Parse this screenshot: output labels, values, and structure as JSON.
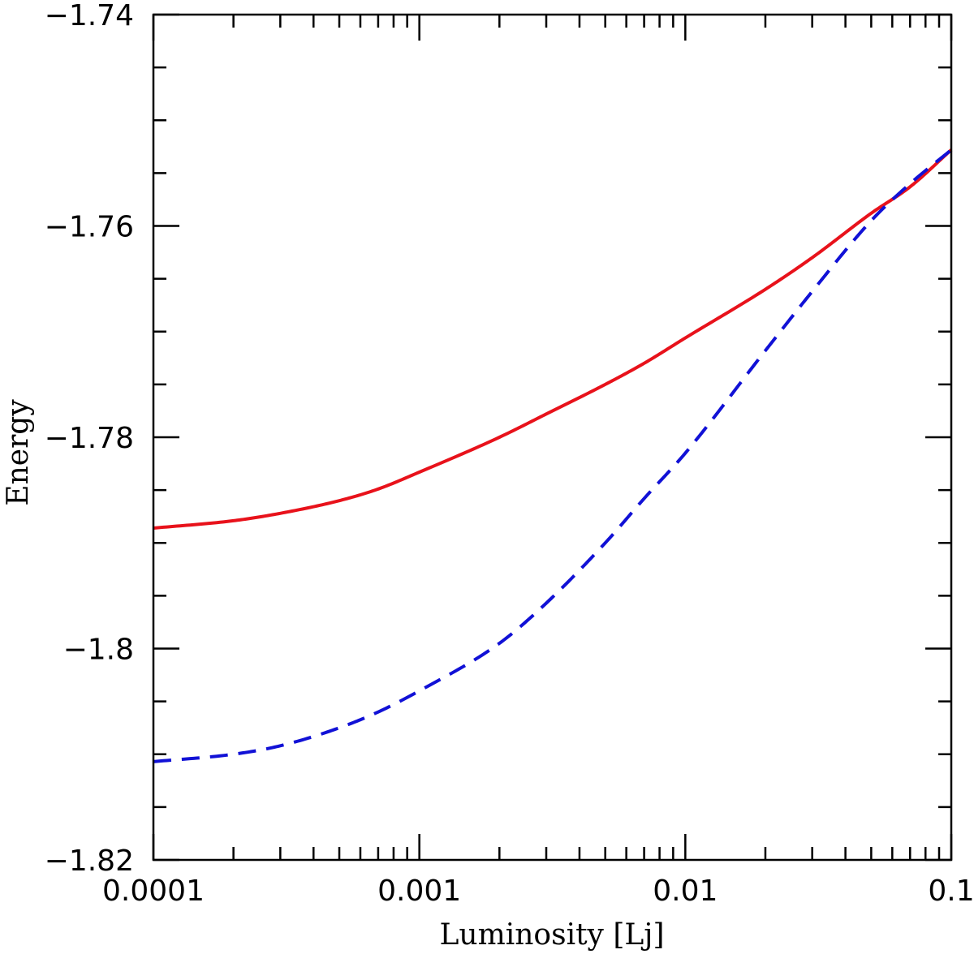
{
  "chart_data": {
    "type": "line",
    "title": "",
    "xlabel": "Luminosity [Lj]",
    "ylabel": "Energy",
    "xscale": "log",
    "xlim": [
      0.0001,
      0.1
    ],
    "ylim": [
      -1.82,
      -1.74
    ],
    "xticks": [
      {
        "value": 0.0001,
        "label": "0.0001"
      },
      {
        "value": 0.001,
        "label": "0.001"
      },
      {
        "value": 0.01,
        "label": "0.01"
      },
      {
        "value": 0.1,
        "label": "0.1"
      }
    ],
    "yticks": [
      {
        "value": -1.74,
        "label": "−1.74"
      },
      {
        "value": -1.76,
        "label": "−1.76"
      },
      {
        "value": -1.78,
        "label": "−1.78"
      },
      {
        "value": -1.8,
        "label": "−1.8"
      },
      {
        "value": -1.82,
        "label": "−1.82"
      }
    ],
    "yminor_step": 0.005,
    "grid": false,
    "series": [
      {
        "name": "solid",
        "style": "solid",
        "color": "#e8121b",
        "x": [
          0.0001,
          0.0002,
          0.0003,
          0.0005,
          0.0007,
          0.001,
          0.002,
          0.003,
          0.005,
          0.007,
          0.01,
          0.02,
          0.03,
          0.05,
          0.07,
          0.1
        ],
        "y": [
          -1.7886,
          -1.7879,
          -1.7872,
          -1.786,
          -1.7849,
          -1.7833,
          -1.78,
          -1.7778,
          -1.775,
          -1.773,
          -1.7706,
          -1.766,
          -1.763,
          -1.7588,
          -1.7563,
          -1.7528
        ]
      },
      {
        "name": "dashed",
        "style": "dashed",
        "color": "#1111d6",
        "x": [
          0.0001,
          0.0002,
          0.0003,
          0.0005,
          0.0007,
          0.001,
          0.002,
          0.003,
          0.005,
          0.007,
          0.01,
          0.02,
          0.03,
          0.05,
          0.07,
          0.1
        ],
        "y": [
          -1.8107,
          -1.81,
          -1.8092,
          -1.8075,
          -1.806,
          -1.804,
          -1.7995,
          -1.7957,
          -1.79,
          -1.7858,
          -1.7815,
          -1.7718,
          -1.7662,
          -1.7595,
          -1.756,
          -1.7528
        ]
      }
    ]
  }
}
